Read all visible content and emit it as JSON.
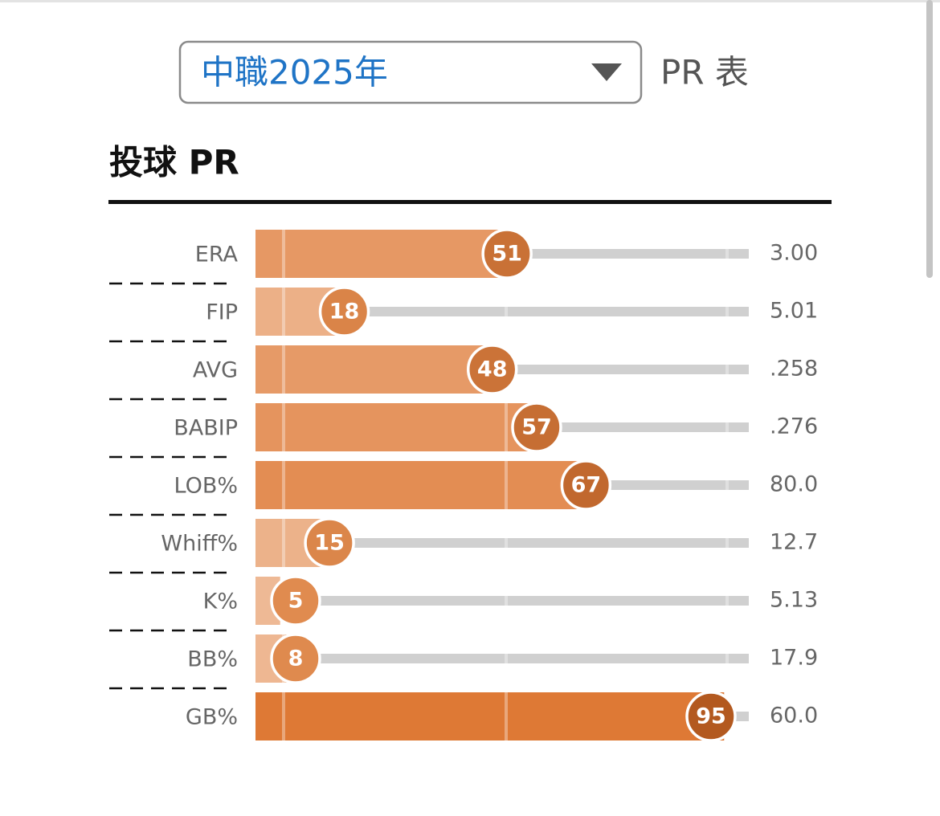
{
  "header": {
    "select": "中職2025年",
    "caption": "PR 表"
  },
  "chart_data": {
    "type": "bar",
    "orientation": "horizontal",
    "title": "投球 PR",
    "categories": [
      "ERA",
      "FIP",
      "AVG",
      "BABIP",
      "LOB%",
      "Whiff%",
      "K%",
      "BB%",
      "GB%"
    ],
    "values": [
      51,
      18,
      48,
      57,
      67,
      15,
      5,
      8,
      95
    ],
    "stats": [
      "3.00",
      "5.01",
      ".258",
      ".276",
      "80.0",
      "12.7",
      "5.13",
      "17.9",
      "60.0"
    ],
    "xlim": [
      0,
      100
    ],
    "color_low": "#efbd9a",
    "color_high": "#dd7530",
    "dot_low": "#e38e52",
    "dot_high": "#b0561c"
  }
}
